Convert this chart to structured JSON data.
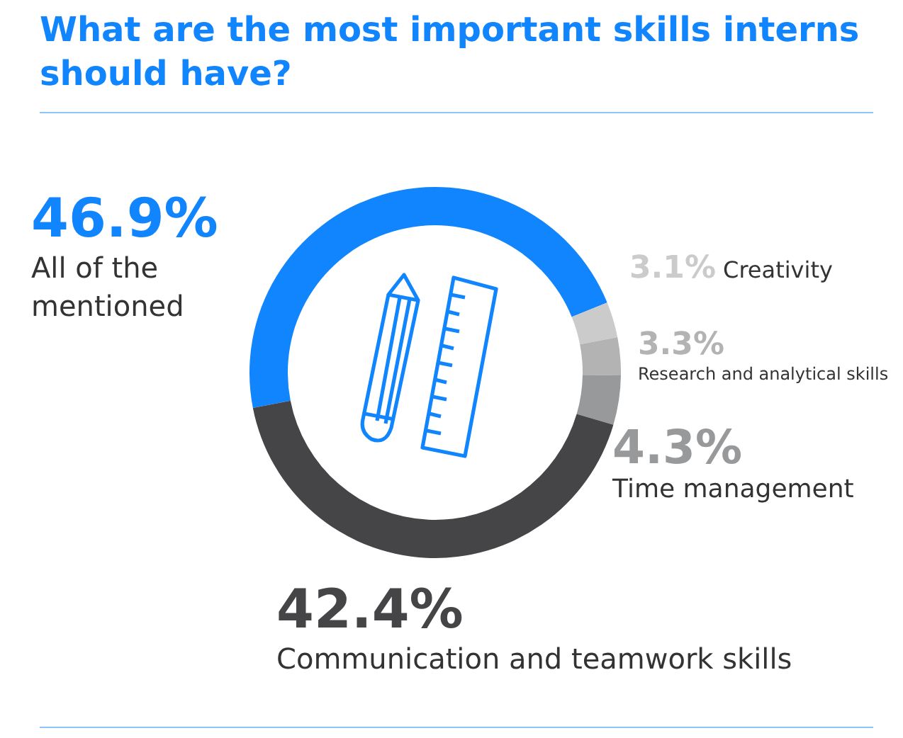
{
  "chart_data": {
    "type": "donut",
    "title": "What are the most important skills interns should have?",
    "categories": [
      "All of the mentioned",
      "Creativity",
      "Research and analytical skills",
      "Time management",
      "Communication and teamwork skills"
    ],
    "values": [
      46.9,
      3.1,
      3.3,
      4.3,
      42.4
    ],
    "colors": [
      "#1185fe",
      "#cbcbcb",
      "#b3b3b4",
      "#98999b",
      "#454547"
    ],
    "value_labels": [
      "46.9%",
      "3.1%",
      "3.3%",
      "4.3%",
      "42.4%"
    ]
  }
}
